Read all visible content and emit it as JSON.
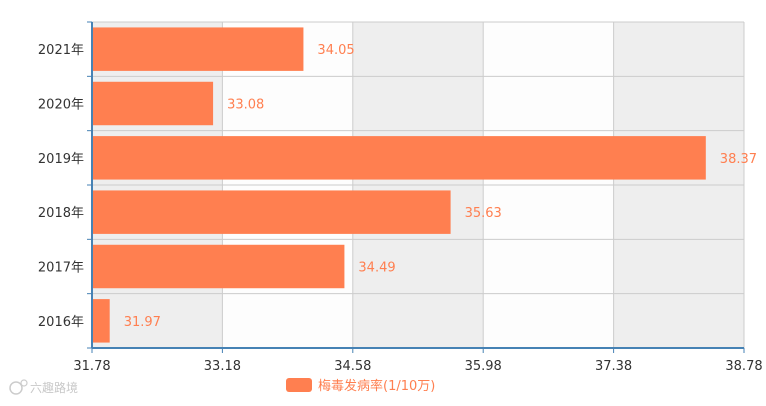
{
  "chart_data": {
    "type": "bar",
    "orientation": "horizontal",
    "categories": [
      "2016年",
      "2017年",
      "2018年",
      "2019年",
      "2020年",
      "2021年"
    ],
    "series": [
      {
        "name": "梅毒发病率(1/10万)",
        "values": [
          31.97,
          34.49,
          35.63,
          38.37,
          33.08,
          34.05
        ],
        "color": "#ff7f50"
      }
    ],
    "xlim": [
      31.78,
      38.78
    ],
    "x_ticks": [
      "31.78",
      "33.18",
      "34.58",
      "35.98",
      "37.38",
      "38.78"
    ],
    "grid": true,
    "legend_position": "bottom",
    "band_colors": [
      "#eeeeee",
      "#fdfdfd"
    ],
    "axis_color": "#4682b4"
  },
  "watermark": {
    "text": "六趣路境"
  }
}
